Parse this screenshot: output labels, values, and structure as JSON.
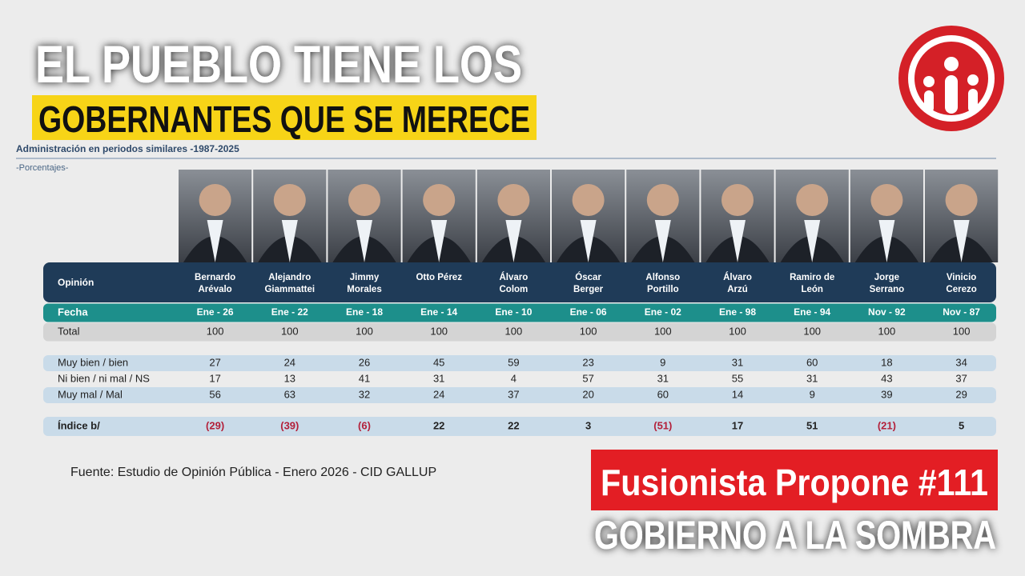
{
  "header": {
    "title_line1": "EL PUEBLO TIENE LOS",
    "title_line2": "GOBERNANTES QUE SE MERECE"
  },
  "table": {
    "title": "Administración en periodos similares -1987-2025",
    "subtitle": "-Porcentajes-",
    "header_label": "Opinión",
    "columns": [
      [
        "Bernardo",
        "Arévalo"
      ],
      [
        "Alejandro",
        "Giammattei"
      ],
      [
        "Jimmy",
        "Morales"
      ],
      [
        "Otto Pérez"
      ],
      [
        "Álvaro",
        "Colom"
      ],
      [
        "Óscar",
        "Berger"
      ],
      [
        "Alfonso",
        "Portillo"
      ],
      [
        "Álvaro",
        "Arzú"
      ],
      [
        "Ramiro de",
        "León"
      ],
      [
        "Jorge",
        "Serrano"
      ],
      [
        "Vinicio",
        "Cerezo"
      ]
    ],
    "rows": [
      {
        "label": "Fecha",
        "values": [
          "Ene - 26",
          "Ene - 22",
          "Ene - 18",
          "Ene - 14",
          "Ene - 10",
          "Ene - 06",
          "Ene - 02",
          "Ene - 98",
          "Ene - 94",
          "Nov - 92",
          "Nov - 87"
        ]
      },
      {
        "label": "Total",
        "values": [
          100,
          100,
          100,
          100,
          100,
          100,
          100,
          100,
          100,
          100,
          100
        ]
      },
      {
        "label": "Muy bien / bien",
        "values": [
          27,
          24,
          26,
          45,
          59,
          23,
          9,
          31,
          60,
          18,
          34
        ]
      },
      {
        "label": "Ni bien / ni mal / NS",
        "values": [
          17,
          13,
          41,
          31,
          4,
          57,
          31,
          55,
          31,
          43,
          37
        ]
      },
      {
        "label": "Muy mal / Mal",
        "values": [
          56,
          63,
          32,
          24,
          37,
          20,
          60,
          14,
          9,
          39,
          29
        ]
      },
      {
        "label": "Índice b/",
        "values": [
          "(29)",
          "(39)",
          "(6)",
          22,
          22,
          3,
          "(51)",
          17,
          51,
          "(21)",
          5
        ]
      }
    ]
  },
  "source": "Fuente: Estudio de Opinión Pública - Enero 2026 - CID GALLUP",
  "banner": {
    "line1": "Fusionista Propone #111",
    "line2": "GOBIERNO A LA SOMBRA"
  }
}
